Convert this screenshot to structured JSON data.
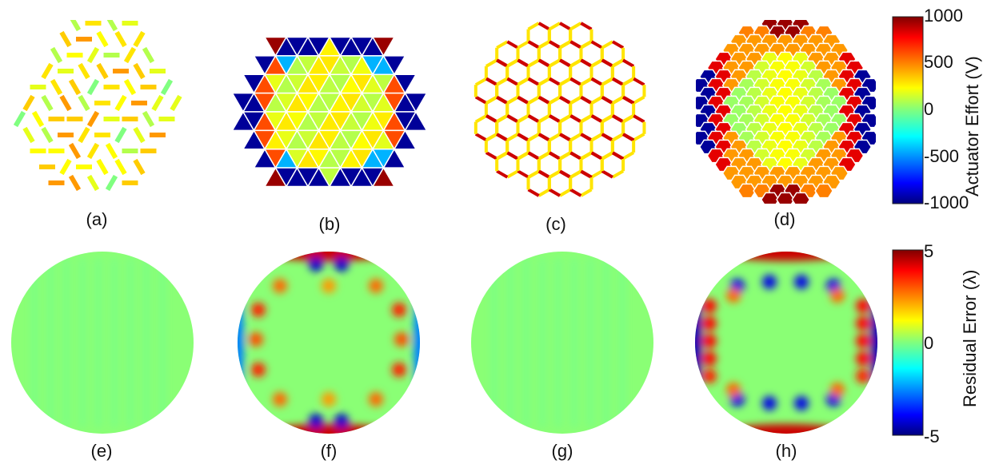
{
  "top_panel_labels": [
    "(a)",
    "(b)",
    "(c)",
    "(d)"
  ],
  "bottom_panel_labels": [
    "(e)",
    "(f)",
    "(g)",
    "(h)"
  ],
  "colorbar_top": {
    "title": "Actuator Effort (V)",
    "ticks": [
      "1000",
      "500",
      "0",
      "-500",
      "-1000"
    ],
    "range": [
      -1000,
      1000
    ]
  },
  "colorbar_bottom": {
    "title": "Residual Error (λ)",
    "ticks": [
      "5",
      "0",
      "-5"
    ],
    "range": [
      -5,
      5
    ]
  },
  "colormap": "jet"
}
